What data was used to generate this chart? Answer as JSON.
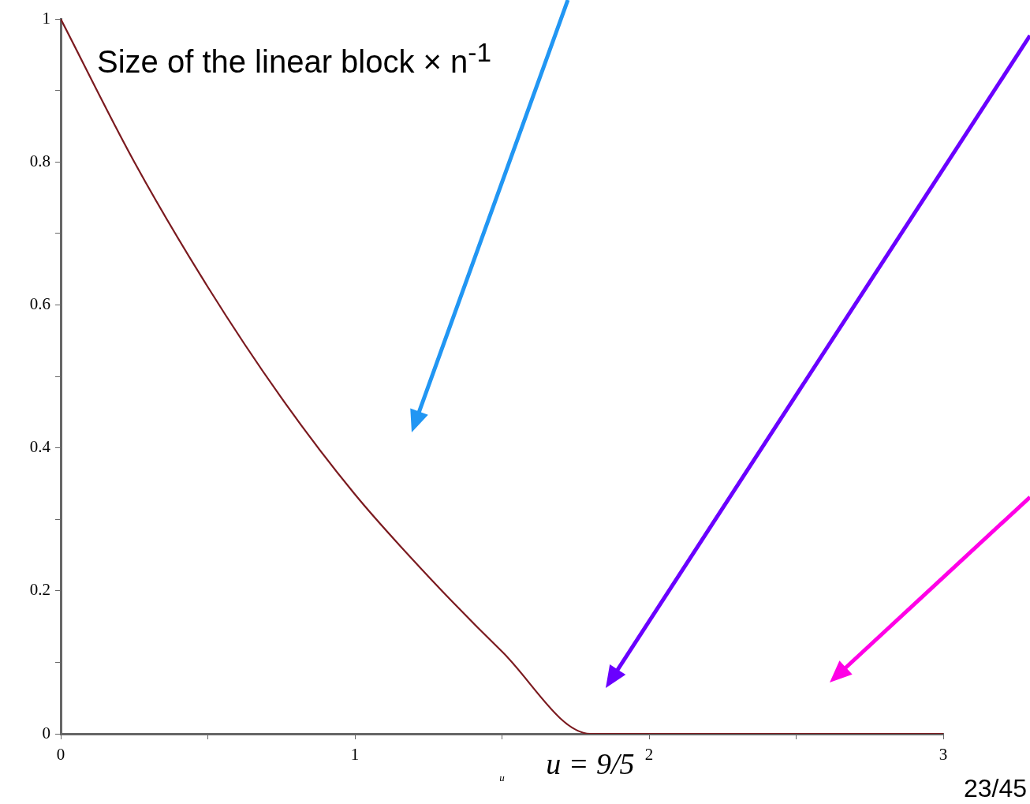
{
  "chart_data": {
    "type": "line",
    "title": "Size of the linear block × n$^{-1}$",
    "xlabel": "u",
    "x": [
      0,
      0.25,
      0.5,
      0.75,
      1,
      1.25,
      1.5,
      1.8,
      3
    ],
    "series": [
      {
        "color": "#7b1a1f",
        "values": [
          1,
          0.8,
          0.625,
          0.47,
          0.335,
          0.22,
          0.115,
          0,
          0
        ]
      }
    ],
    "xlim": [
      0,
      3
    ],
    "xticks": [
      0,
      {
        "value": 0.5,
        "label": null
      },
      1,
      {
        "value": 1.5,
        "label": null
      },
      2,
      {
        "value": 2.5,
        "label": null
      },
      3
    ],
    "ylim": [
      0,
      1
    ],
    "yticks": [
      0,
      {
        "value": 0.1,
        "label": null
      },
      0.2,
      {
        "value": 0.3,
        "label": null
      },
      0.4,
      {
        "value": 0.5,
        "label": null
      },
      0.6,
      {
        "value": 0.7,
        "label": null
      },
      0.8,
      {
        "value": 0.9,
        "label": null
      },
      1
    ],
    "grid": false,
    "legend": false,
    "marker": "none",
    "line_style": "solid",
    "annotations": [
      {
        "text": "u = 9/5",
        "x": 1.8,
        "y": 0
      },
      "23/45"
    ]
  }
}
